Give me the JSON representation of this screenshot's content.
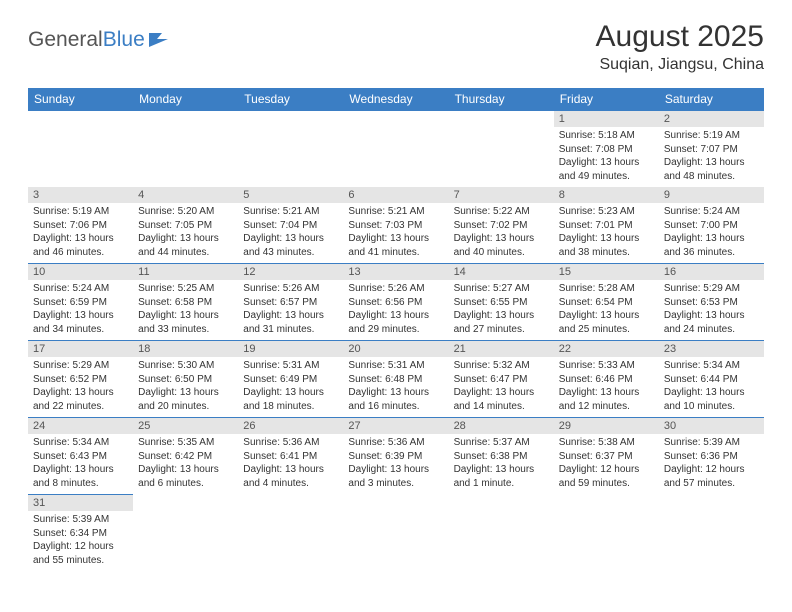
{
  "logo": {
    "general": "General",
    "blue": "Blue"
  },
  "title": "August 2025",
  "location": "Suqian, Jiangsu, China",
  "weekdays": [
    "Sunday",
    "Monday",
    "Tuesday",
    "Wednesday",
    "Thursday",
    "Friday",
    "Saturday"
  ],
  "colors": {
    "header_bg": "#3b7ec4",
    "header_fg": "#ffffff",
    "daynum_bg": "#e5e5e5",
    "row_border": "#3b7ec4",
    "text": "#333333"
  },
  "weeks": [
    [
      null,
      null,
      null,
      null,
      null,
      {
        "n": "1",
        "sr": "Sunrise: 5:18 AM",
        "ss": "Sunset: 7:08 PM",
        "dl": "Daylight: 13 hours and 49 minutes."
      },
      {
        "n": "2",
        "sr": "Sunrise: 5:19 AM",
        "ss": "Sunset: 7:07 PM",
        "dl": "Daylight: 13 hours and 48 minutes."
      }
    ],
    [
      {
        "n": "3",
        "sr": "Sunrise: 5:19 AM",
        "ss": "Sunset: 7:06 PM",
        "dl": "Daylight: 13 hours and 46 minutes."
      },
      {
        "n": "4",
        "sr": "Sunrise: 5:20 AM",
        "ss": "Sunset: 7:05 PM",
        "dl": "Daylight: 13 hours and 44 minutes."
      },
      {
        "n": "5",
        "sr": "Sunrise: 5:21 AM",
        "ss": "Sunset: 7:04 PM",
        "dl": "Daylight: 13 hours and 43 minutes."
      },
      {
        "n": "6",
        "sr": "Sunrise: 5:21 AM",
        "ss": "Sunset: 7:03 PM",
        "dl": "Daylight: 13 hours and 41 minutes."
      },
      {
        "n": "7",
        "sr": "Sunrise: 5:22 AM",
        "ss": "Sunset: 7:02 PM",
        "dl": "Daylight: 13 hours and 40 minutes."
      },
      {
        "n": "8",
        "sr": "Sunrise: 5:23 AM",
        "ss": "Sunset: 7:01 PM",
        "dl": "Daylight: 13 hours and 38 minutes."
      },
      {
        "n": "9",
        "sr": "Sunrise: 5:24 AM",
        "ss": "Sunset: 7:00 PM",
        "dl": "Daylight: 13 hours and 36 minutes."
      }
    ],
    [
      {
        "n": "10",
        "sr": "Sunrise: 5:24 AM",
        "ss": "Sunset: 6:59 PM",
        "dl": "Daylight: 13 hours and 34 minutes."
      },
      {
        "n": "11",
        "sr": "Sunrise: 5:25 AM",
        "ss": "Sunset: 6:58 PM",
        "dl": "Daylight: 13 hours and 33 minutes."
      },
      {
        "n": "12",
        "sr": "Sunrise: 5:26 AM",
        "ss": "Sunset: 6:57 PM",
        "dl": "Daylight: 13 hours and 31 minutes."
      },
      {
        "n": "13",
        "sr": "Sunrise: 5:26 AM",
        "ss": "Sunset: 6:56 PM",
        "dl": "Daylight: 13 hours and 29 minutes."
      },
      {
        "n": "14",
        "sr": "Sunrise: 5:27 AM",
        "ss": "Sunset: 6:55 PM",
        "dl": "Daylight: 13 hours and 27 minutes."
      },
      {
        "n": "15",
        "sr": "Sunrise: 5:28 AM",
        "ss": "Sunset: 6:54 PM",
        "dl": "Daylight: 13 hours and 25 minutes."
      },
      {
        "n": "16",
        "sr": "Sunrise: 5:29 AM",
        "ss": "Sunset: 6:53 PM",
        "dl": "Daylight: 13 hours and 24 minutes."
      }
    ],
    [
      {
        "n": "17",
        "sr": "Sunrise: 5:29 AM",
        "ss": "Sunset: 6:52 PM",
        "dl": "Daylight: 13 hours and 22 minutes."
      },
      {
        "n": "18",
        "sr": "Sunrise: 5:30 AM",
        "ss": "Sunset: 6:50 PM",
        "dl": "Daylight: 13 hours and 20 minutes."
      },
      {
        "n": "19",
        "sr": "Sunrise: 5:31 AM",
        "ss": "Sunset: 6:49 PM",
        "dl": "Daylight: 13 hours and 18 minutes."
      },
      {
        "n": "20",
        "sr": "Sunrise: 5:31 AM",
        "ss": "Sunset: 6:48 PM",
        "dl": "Daylight: 13 hours and 16 minutes."
      },
      {
        "n": "21",
        "sr": "Sunrise: 5:32 AM",
        "ss": "Sunset: 6:47 PM",
        "dl": "Daylight: 13 hours and 14 minutes."
      },
      {
        "n": "22",
        "sr": "Sunrise: 5:33 AM",
        "ss": "Sunset: 6:46 PM",
        "dl": "Daylight: 13 hours and 12 minutes."
      },
      {
        "n": "23",
        "sr": "Sunrise: 5:34 AM",
        "ss": "Sunset: 6:44 PM",
        "dl": "Daylight: 13 hours and 10 minutes."
      }
    ],
    [
      {
        "n": "24",
        "sr": "Sunrise: 5:34 AM",
        "ss": "Sunset: 6:43 PM",
        "dl": "Daylight: 13 hours and 8 minutes."
      },
      {
        "n": "25",
        "sr": "Sunrise: 5:35 AM",
        "ss": "Sunset: 6:42 PM",
        "dl": "Daylight: 13 hours and 6 minutes."
      },
      {
        "n": "26",
        "sr": "Sunrise: 5:36 AM",
        "ss": "Sunset: 6:41 PM",
        "dl": "Daylight: 13 hours and 4 minutes."
      },
      {
        "n": "27",
        "sr": "Sunrise: 5:36 AM",
        "ss": "Sunset: 6:39 PM",
        "dl": "Daylight: 13 hours and 3 minutes."
      },
      {
        "n": "28",
        "sr": "Sunrise: 5:37 AM",
        "ss": "Sunset: 6:38 PM",
        "dl": "Daylight: 13 hours and 1 minute."
      },
      {
        "n": "29",
        "sr": "Sunrise: 5:38 AM",
        "ss": "Sunset: 6:37 PM",
        "dl": "Daylight: 12 hours and 59 minutes."
      },
      {
        "n": "30",
        "sr": "Sunrise: 5:39 AM",
        "ss": "Sunset: 6:36 PM",
        "dl": "Daylight: 12 hours and 57 minutes."
      }
    ],
    [
      {
        "n": "31",
        "sr": "Sunrise: 5:39 AM",
        "ss": "Sunset: 6:34 PM",
        "dl": "Daylight: 12 hours and 55 minutes."
      },
      null,
      null,
      null,
      null,
      null,
      null
    ]
  ]
}
